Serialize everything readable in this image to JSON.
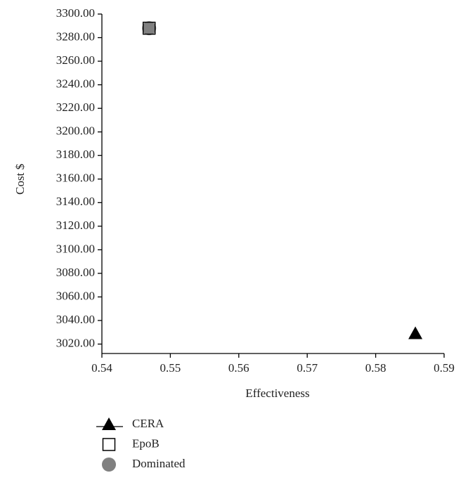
{
  "chart_data": {
    "type": "scatter",
    "x_label": "Effectiveness",
    "y_label": "Cost $",
    "xlim": [
      0.54,
      0.59
    ],
    "xticks": [
      0.54,
      0.55,
      0.56,
      0.57,
      0.58,
      0.59
    ],
    "ylim": [
      3012,
      3300
    ],
    "yticks": [
      {
        "value": 3020,
        "label": "3020.00"
      },
      {
        "value": 3040,
        "label": "3040.00"
      },
      {
        "value": 3060,
        "label": "3060.00"
      },
      {
        "value": 3080,
        "label": "3080.00"
      },
      {
        "value": 3100,
        "label": "3100.00"
      },
      {
        "value": 3120,
        "label": "3120.00"
      },
      {
        "value": 3140,
        "label": "3140.00"
      },
      {
        "value": 3160,
        "label": "3160.00"
      },
      {
        "value": 3180,
        "label": "3180.00"
      },
      {
        "value": 3200,
        "label": "3200.00"
      },
      {
        "value": 3220,
        "label": "3220.00"
      },
      {
        "value": 3240,
        "label": "3240.00"
      },
      {
        "value": 3260,
        "label": "3260.00"
      },
      {
        "value": 3280,
        "label": "3280.00"
      },
      {
        "value": 3300,
        "label": "3300.00"
      }
    ],
    "series": [
      {
        "name": "CERA",
        "color": "#000000",
        "marker": "triangle",
        "x": [
          0.5858
        ],
        "values": [
          3029
        ]
      },
      {
        "name": "EpoB",
        "color": "#000000",
        "marker": "square",
        "x": [
          0.5469
        ],
        "values": [
          3288
        ]
      },
      {
        "name": "Dominated",
        "color": "#808080",
        "marker": "circle",
        "x": [
          0.5469
        ],
        "values": [
          3288
        ]
      }
    ]
  }
}
